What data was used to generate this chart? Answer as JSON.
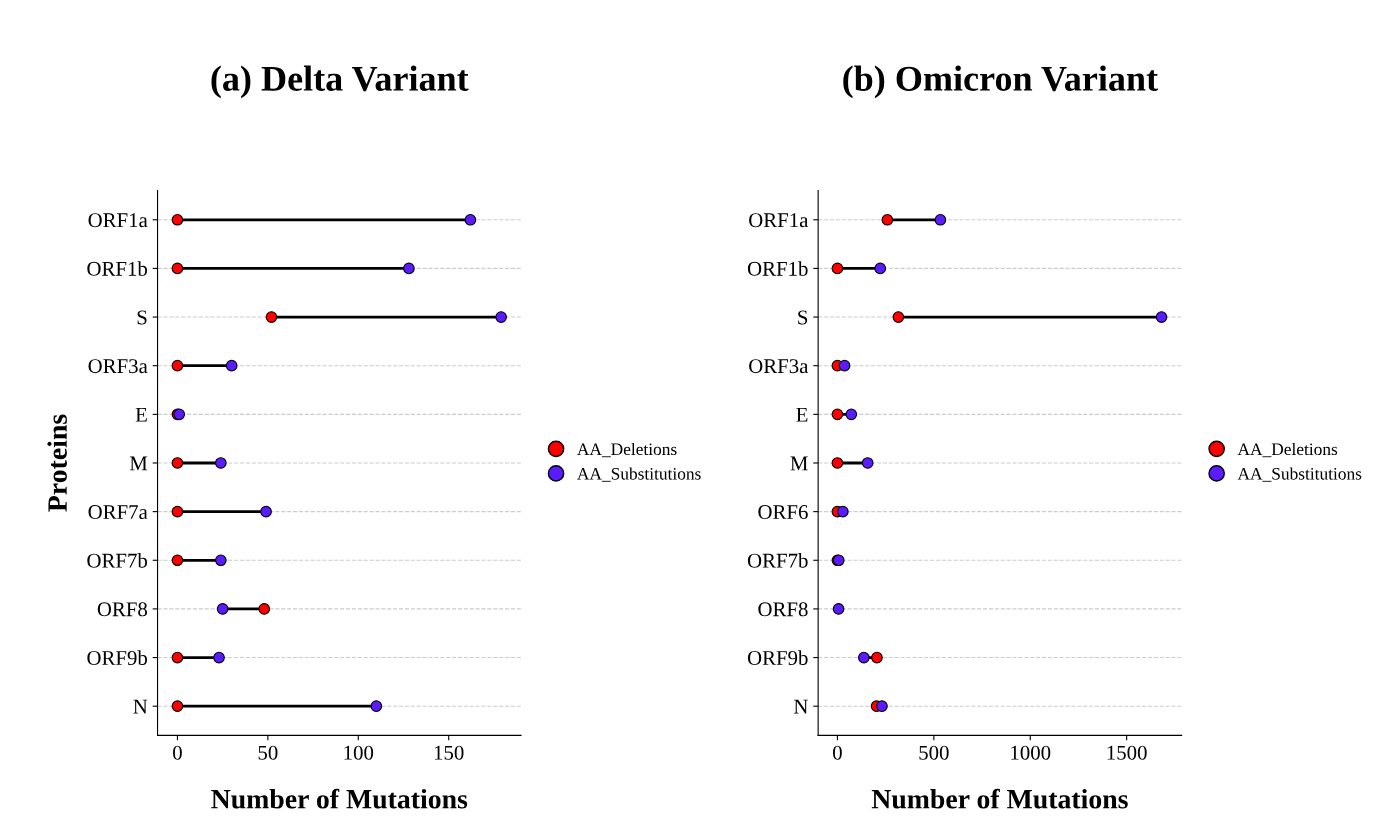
{
  "chart_data": [
    {
      "type": "scatter",
      "title": "(a) Delta Variant",
      "xlabel": "Number of Mutations",
      "ylabel": "Proteins",
      "orientation": "horizontal",
      "categories": [
        "ORF1a",
        "ORF1b",
        "S",
        "ORF3a",
        "E",
        "M",
        "ORF7a",
        "ORF7b",
        "ORF8",
        "ORF9b",
        "N"
      ],
      "series": [
        {
          "name": "AA_Deletions",
          "color": "#ff0000",
          "values": [
            0,
            0,
            52,
            0,
            0,
            0,
            0,
            0,
            48,
            0,
            0
          ]
        },
        {
          "name": "AA_Substitutions",
          "color": "#5a1cff",
          "values": [
            162,
            128,
            179,
            30,
            1,
            24,
            49,
            24,
            25,
            23,
            110
          ]
        }
      ],
      "xlim": [
        -11,
        190
      ],
      "xticks": [
        0,
        50,
        100,
        150
      ],
      "marker": "circle",
      "grid": "y",
      "legend": "right"
    },
    {
      "type": "scatter",
      "title": "(b) Omicron Variant",
      "xlabel": "Number of Mutations",
      "orientation": "horizontal",
      "categories": [
        "ORF1a",
        "ORF1b",
        "S",
        "ORF3a",
        "E",
        "M",
        "ORF6",
        "ORF7b",
        "ORF8",
        "ORF9b",
        "N"
      ],
      "series": [
        {
          "name": "AA_Deletions",
          "color": "#ff0000",
          "values": [
            259,
            0,
            316,
            0,
            0,
            0,
            0,
            0,
            null,
            205,
            203
          ]
        },
        {
          "name": "AA_Substitutions",
          "color": "#5a1cff",
          "values": [
            534,
            222,
            1681,
            37,
            72,
            157,
            28,
            7,
            6,
            137,
            231
          ]
        }
      ],
      "xlim": [
        -100,
        1785
      ],
      "xticks": [
        0,
        500,
        1000,
        1500
      ],
      "marker": "circle",
      "grid": "y",
      "legend": "right"
    }
  ]
}
